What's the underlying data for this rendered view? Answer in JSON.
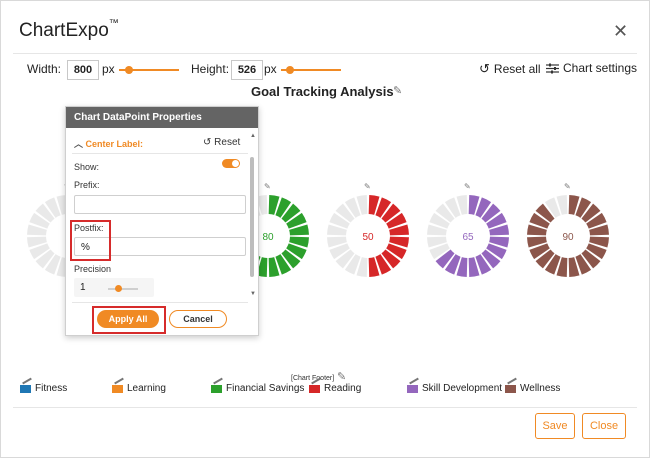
{
  "app": {
    "title": "ChartExpo",
    "trademark": "™"
  },
  "toolbar": {
    "width_label": "Width:",
    "width_value": "800",
    "width_unit": "px",
    "height_label": "Height:",
    "height_value": "526",
    "height_unit": "px",
    "reset_all": "Reset all",
    "chart_settings": "Chart settings"
  },
  "chart_title": "Goal Tracking Analysis",
  "panel": {
    "header": "Chart DataPoint Properties",
    "section": "Center Label:",
    "reset": "Reset",
    "show_label": "Show:",
    "show_value": true,
    "prefix_label": "Prefix:",
    "prefix_value": "",
    "postfix_label": "Postfix:",
    "postfix_value": "%",
    "precision_label": "Precision",
    "precision_value": "1",
    "apply": "Apply All",
    "cancel": "Cancel"
  },
  "chart_data": {
    "type": "donut",
    "max": 100,
    "series": [
      {
        "name": "Fitness",
        "value": null,
        "color": "#1f77b4"
      },
      {
        "name": "Learning",
        "value": null,
        "color": "#f08a24"
      },
      {
        "name": "Financial Savings",
        "value": 80,
        "color": "#2ca02c"
      },
      {
        "name": "Reading",
        "value": 50,
        "color": "#d62728"
      },
      {
        "name": "Skill Development",
        "value": 65,
        "color": "#9467bd"
      },
      {
        "name": "Wellness",
        "value": 90,
        "color": "#8c564b"
      }
    ]
  },
  "chart_footer": "[Chart Footer]",
  "footer": {
    "save": "Save",
    "close": "Close"
  },
  "icons": {
    "close": "close-icon",
    "reset": "reset-icon",
    "settings": "sliders-icon",
    "edit": "pencil-icon"
  }
}
